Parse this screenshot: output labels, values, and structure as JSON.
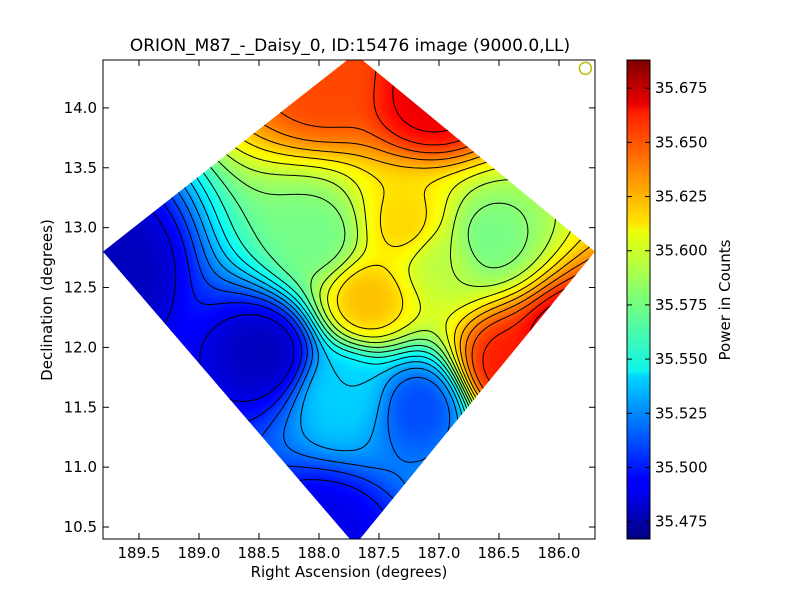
{
  "chart_data": {
    "type": "heatmap",
    "title": "ORION_M87_-_Daisy_0, ID:15476 image (9000.0,LL)",
    "xlabel": "Right Ascension (degrees)",
    "ylabel": "Declination (degrees)",
    "xlim": [
      189.8,
      185.7
    ],
    "ylim": [
      10.4,
      14.4
    ],
    "x_ticks": [
      189.5,
      189.0,
      188.5,
      188.0,
      187.5,
      187.0,
      186.5,
      186.0
    ],
    "x_tick_labels": [
      "189.5",
      "189.0",
      "188.5",
      "188.0",
      "187.5",
      "187.0",
      "186.5",
      "186.0"
    ],
    "y_ticks": [
      10.5,
      11.0,
      11.5,
      12.0,
      12.5,
      13.0,
      13.5,
      14.0
    ],
    "y_tick_labels": [
      "10.5",
      "11.0",
      "11.5",
      "12.0",
      "12.5",
      "13.0",
      "13.5",
      "14.0"
    ],
    "colorbar": {
      "label": "Power in Counts",
      "range": [
        35.467,
        35.688
      ],
      "ticks": [
        35.475,
        35.5,
        35.525,
        35.55,
        35.575,
        35.6,
        35.625,
        35.65,
        35.675
      ],
      "tick_labels": [
        "35.475",
        "35.500",
        "35.525",
        "35.550",
        "35.575",
        "35.600",
        "35.625",
        "35.650",
        "35.675"
      ]
    },
    "colormap": "jet",
    "footprint": {
      "shape": "diamond",
      "vertices": [
        [
          187.7,
          14.45
        ],
        [
          185.7,
          12.8
        ],
        [
          187.7,
          10.35
        ],
        [
          189.8,
          12.8
        ]
      ]
    },
    "field_features": [
      {
        "ra": 188.45,
        "dec": 11.95,
        "value": 35.48
      },
      {
        "ra": 189.75,
        "dec": 12.65,
        "value": 35.48
      },
      {
        "ra": 187.95,
        "dec": 10.45,
        "value": 35.49
      },
      {
        "ra": 187.15,
        "dec": 11.5,
        "value": 35.51
      },
      {
        "ra": 187.8,
        "dec": 11.6,
        "value": 35.54
      },
      {
        "ra": 187.25,
        "dec": 13.0,
        "value": 35.615
      },
      {
        "ra": 187.6,
        "dec": 12.4,
        "value": 35.62
      },
      {
        "ra": 187.05,
        "dec": 14.1,
        "value": 35.665
      },
      {
        "ra": 185.9,
        "dec": 11.95,
        "value": 35.68
      },
      {
        "ra": 186.45,
        "dec": 11.85,
        "value": 35.655
      },
      {
        "ra": 187.95,
        "dec": 14.25,
        "value": 35.645
      },
      {
        "ra": 186.6,
        "dec": 12.9,
        "value": 35.575
      },
      {
        "ra": 187.0,
        "dec": 12.75,
        "value": 35.59
      },
      {
        "ra": 188.0,
        "dec": 12.9,
        "value": 35.575
      }
    ],
    "contour_levels": [
      35.49,
      35.5,
      35.51,
      35.52,
      35.53,
      35.54,
      35.55,
      35.56,
      35.57,
      35.58,
      35.59,
      35.6,
      35.61,
      35.62,
      35.63,
      35.64,
      35.65,
      35.66,
      35.67
    ],
    "grid": false,
    "legend": "none",
    "marker": {
      "type": "circle",
      "ra": 185.78,
      "dec": 14.33,
      "color": "#bbbb00"
    }
  }
}
